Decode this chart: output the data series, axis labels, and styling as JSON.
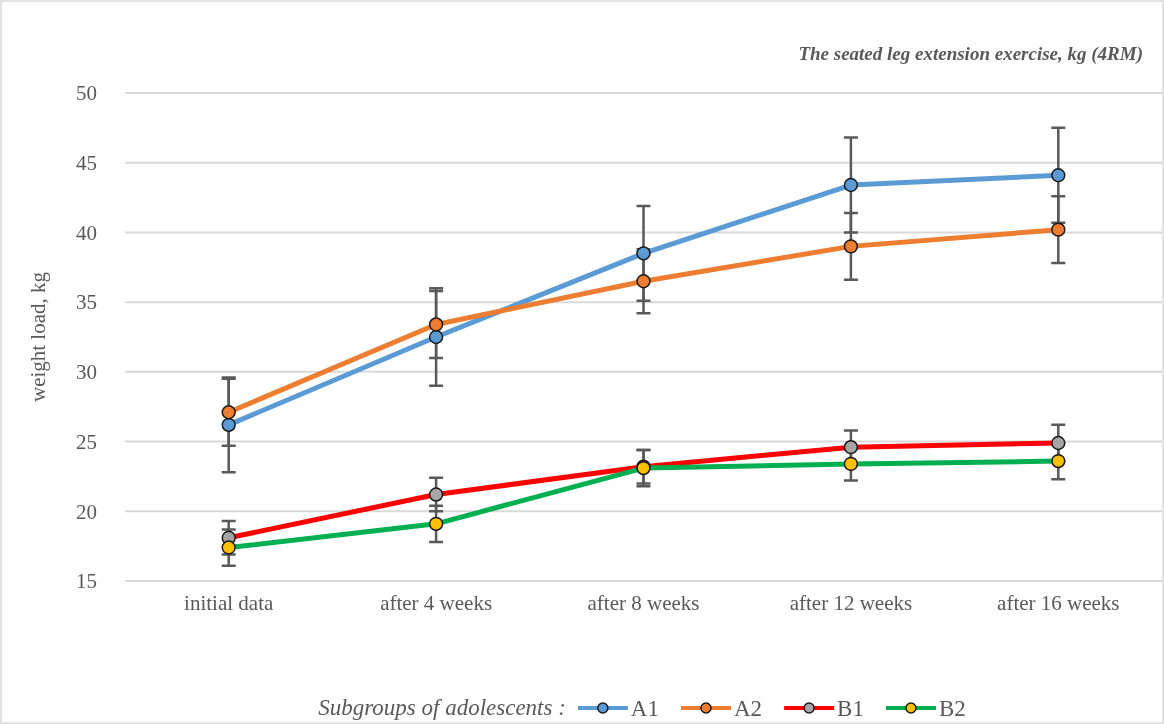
{
  "chart_data": {
    "type": "line",
    "title": "The seated leg extension exercise, kg (4RM)",
    "ylabel": "weight load, kg",
    "legend_title": "Subgroups of adolescents :",
    "categories": [
      "initial data",
      "after 4 weeks",
      "after 8 weeks",
      "after 12 weeks",
      "after 16 weeks"
    ],
    "series": [
      {
        "name": "A1",
        "color": "#5b9bd5",
        "colors": [
          "#5b9bd5",
          "#5b9bd5",
          "#5b9bd5",
          "#5b9bd5",
          "#5b9bd5"
        ],
        "values": [
          26.2,
          32.5,
          38.5,
          43.4,
          44.1
        ],
        "errors": [
          3.4,
          3.5,
          3.4,
          3.4,
          3.4
        ]
      },
      {
        "name": "A2",
        "color": "#ed7d31",
        "colors": [
          "#ed7d31",
          "#ed7d31",
          "#ed7d31",
          "#ed7d31",
          "#ed7d31"
        ],
        "values": [
          27.1,
          33.4,
          36.5,
          39.0,
          40.2
        ],
        "errors": [
          2.4,
          2.4,
          2.3,
          2.4,
          2.4
        ]
      },
      {
        "name": "B1",
        "color": "#ff0000",
        "colors": [
          "#a5a5a5",
          "#a5a5a5",
          "#a5a5a5",
          "#a5a5a5",
          "#a5a5a5"
        ],
        "values": [
          18.1,
          21.2,
          23.2,
          24.6,
          24.9
        ],
        "errors": [
          1.2,
          1.2,
          1.2,
          1.2,
          1.3
        ]
      },
      {
        "name": "B2",
        "color": "#00b050",
        "colors": [
          "#ffc000",
          "#ffc000",
          "#ffc000",
          "#ffc000",
          "#ffc000"
        ],
        "values": [
          17.4,
          19.1,
          23.1,
          23.4,
          23.6
        ],
        "errors": [
          1.3,
          1.3,
          1.3,
          1.2,
          1.3
        ]
      }
    ],
    "ylim": [
      15,
      50
    ],
    "yticks": [
      15,
      20,
      25,
      30,
      35,
      40,
      45,
      50
    ],
    "grid": "y",
    "legend": "bottom",
    "marker": "circle",
    "line_style": "solid"
  }
}
